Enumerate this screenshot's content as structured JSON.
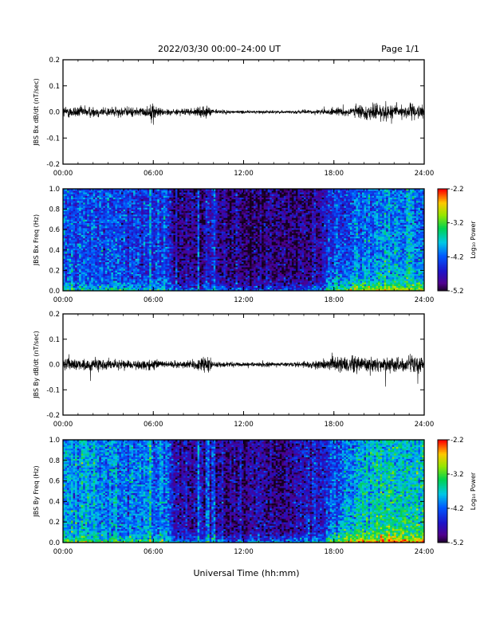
{
  "header": {
    "title": "2022/03/30  00:00–24:00 UT",
    "page": "Page 1/1"
  },
  "xaxis_label": "Universal Time (hh:mm)",
  "chart_data": [
    {
      "type": "line",
      "ylabel": "JBS Bx dB/dt (nT/sec)",
      "xlim": [
        0,
        24
      ],
      "ylim": [
        -0.2,
        0.2
      ],
      "xticks": [
        "00:00",
        "06:00",
        "12:00",
        "18:00",
        "24:00"
      ],
      "yticks": [
        "-0.2",
        "-0.1",
        "0.0",
        "0.1",
        "0.2"
      ],
      "envelope": {
        "x": [
          0,
          1,
          2,
          3,
          4,
          5,
          5.5,
          6,
          6.5,
          7,
          8,
          9,
          9.5,
          10,
          11,
          12,
          13,
          14,
          15,
          16,
          17,
          18,
          19,
          20,
          21,
          22,
          23,
          24
        ],
        "amplitude": [
          0.02,
          0.02,
          0.018,
          0.017,
          0.016,
          0.016,
          0.016,
          0.03,
          0.014,
          0.01,
          0.01,
          0.014,
          0.02,
          0.01,
          0.006,
          0.005,
          0.005,
          0.005,
          0.005,
          0.006,
          0.008,
          0.012,
          0.016,
          0.025,
          0.03,
          0.028,
          0.025,
          0.022
        ]
      }
    },
    {
      "type": "heatmap",
      "ylabel": "JBS Bx Freq (Hz)",
      "xlim": [
        0,
        24
      ],
      "ylim": [
        0,
        1
      ],
      "xticks": [
        "00:00",
        "06:00",
        "12:00",
        "18:00",
        "24:00"
      ],
      "yticks": [
        "0.0",
        "0.2",
        "0.4",
        "0.6",
        "0.8",
        "1.0"
      ],
      "colorbar": {
        "label": "Log₁₀ Power",
        "range": [
          -5.2,
          -2.2
        ],
        "ticks": [
          "-2.2",
          "-3.2",
          "-4.2",
          "-5.2"
        ]
      },
      "level_profile": {
        "x": [
          0,
          3,
          6,
          7,
          7.5,
          10,
          11,
          14,
          16,
          17,
          18,
          19,
          20,
          21,
          22,
          24
        ],
        "mean_log_power": [
          -4.2,
          -4.3,
          -4.4,
          -4.4,
          -4.9,
          -4.9,
          -5.0,
          -5.0,
          -4.9,
          -4.7,
          -4.5,
          -4.3,
          -4.1,
          -4.0,
          -4.0,
          -4.1
        ]
      },
      "bright_stripes_hours": [
        5.8,
        9.0,
        9.6,
        10.0
      ]
    },
    {
      "type": "line",
      "ylabel": "JBS By dB/dt (nT/sec)",
      "xlim": [
        0,
        24
      ],
      "ylim": [
        -0.2,
        0.2
      ],
      "xticks": [
        "00:00",
        "06:00",
        "12:00",
        "18:00",
        "24:00"
      ],
      "yticks": [
        "-0.2",
        "-0.1",
        "0.0",
        "0.1",
        "0.2"
      ],
      "envelope": {
        "x": [
          0,
          1,
          2,
          3,
          4,
          5,
          5.5,
          6,
          6.5,
          7,
          8,
          9,
          9.5,
          10,
          11,
          12,
          13,
          14,
          15,
          16,
          17,
          18,
          19,
          20,
          21,
          22,
          23,
          24
        ],
        "amplitude": [
          0.025,
          0.022,
          0.02,
          0.018,
          0.016,
          0.016,
          0.015,
          0.018,
          0.012,
          0.01,
          0.012,
          0.02,
          0.03,
          0.012,
          0.008,
          0.007,
          0.007,
          0.007,
          0.008,
          0.01,
          0.015,
          0.025,
          0.03,
          0.03,
          0.028,
          0.03,
          0.03,
          0.028
        ]
      }
    },
    {
      "type": "heatmap",
      "ylabel": "JBS By Freq (Hz)",
      "xlim": [
        0,
        24
      ],
      "ylim": [
        0,
        1
      ],
      "xticks": [
        "00:00",
        "06:00",
        "12:00",
        "18:00",
        "24:00"
      ],
      "yticks": [
        "0.0",
        "0.2",
        "0.4",
        "0.6",
        "0.8",
        "1.0"
      ],
      "colorbar": {
        "label": "Log₁₀ Power",
        "range": [
          -5.2,
          -2.2
        ],
        "ticks": [
          "-2.2",
          "-3.2",
          "-4.2",
          "-5.2"
        ]
      },
      "level_profile": {
        "x": [
          0,
          3,
          6,
          7,
          7.5,
          10,
          11,
          14,
          16,
          17,
          18,
          19,
          20,
          21,
          22,
          24
        ],
        "mean_log_power": [
          -3.9,
          -4.0,
          -4.1,
          -4.1,
          -4.8,
          -4.8,
          -4.9,
          -4.9,
          -4.8,
          -4.6,
          -4.3,
          -4.0,
          -3.8,
          -3.7,
          -3.7,
          -3.8
        ]
      },
      "bright_stripes_hours": [
        5.8,
        9.0,
        9.6,
        10.0
      ]
    }
  ]
}
